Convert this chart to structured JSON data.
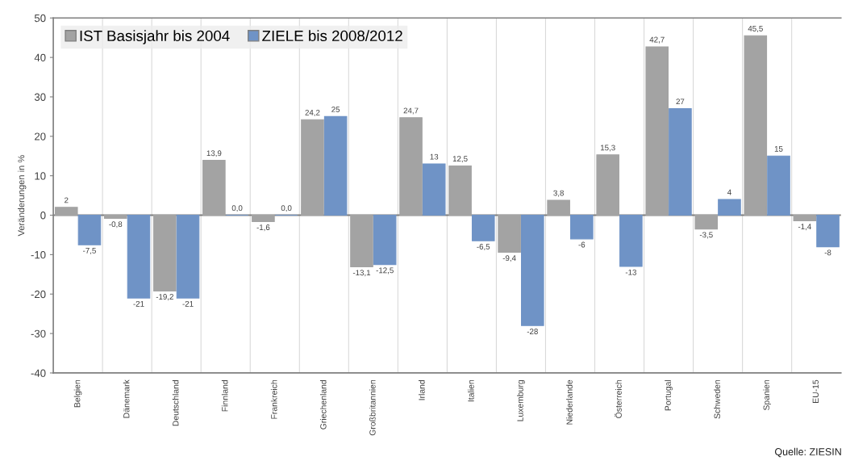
{
  "chart_data": {
    "type": "bar",
    "ylabel": "Veränderungen in %",
    "annotations": [
      "Quelle: ZIESIN"
    ],
    "categories": [
      "Belgien",
      "Dänemark",
      "Deutschland",
      "Finnland",
      "Frankreich",
      "Griechenland",
      "Großbritannien",
      "Irland",
      "Italien",
      "Luxemburg",
      "Niederlande",
      "Österreich",
      "Portugal",
      "Schweden",
      "Spanien",
      "EU-15"
    ],
    "series": [
      {
        "name": "IST Basisjahr bis 2004",
        "color": "#a3a3a3",
        "values": [
          2,
          -0.8,
          -19.2,
          13.9,
          -1.6,
          24.2,
          -13.1,
          24.7,
          12.5,
          -9.4,
          3.8,
          15.3,
          42.7,
          -3.5,
          45.5,
          -1.4
        ],
        "value_labels": [
          "2",
          "-0,8",
          "-19,2",
          "13,9",
          "-1,6",
          "24,2",
          "-13,1",
          "24,7",
          "12,5",
          "-9,4",
          "3,8",
          "15,3",
          "42,7",
          "-3,5",
          "45,5",
          "-1,4"
        ]
      },
      {
        "name": "ZIELE bis 2008/2012",
        "color": "#6f93c6",
        "values": [
          -7.5,
          -21,
          -21,
          0.0,
          0.0,
          25,
          -12.5,
          13,
          -6.5,
          -28,
          -6,
          -13,
          27,
          4,
          15,
          -8
        ],
        "value_labels": [
          "-7,5",
          "-21",
          "-21",
          "0,0",
          "0,0",
          "25",
          "-12,5",
          "13",
          "-6,5",
          "-28",
          "-6",
          "-13",
          "27",
          "4",
          "15",
          "-8"
        ]
      }
    ],
    "ylim": [
      -40,
      50
    ],
    "yticks": [
      -40,
      -30,
      -20,
      -10,
      0,
      10,
      20,
      30,
      40,
      50
    ],
    "ref_lines": [
      {
        "axis": "y",
        "value": 0,
        "color": "#7f7f7f"
      }
    ],
    "grid": "x",
    "legend": "top left"
  }
}
